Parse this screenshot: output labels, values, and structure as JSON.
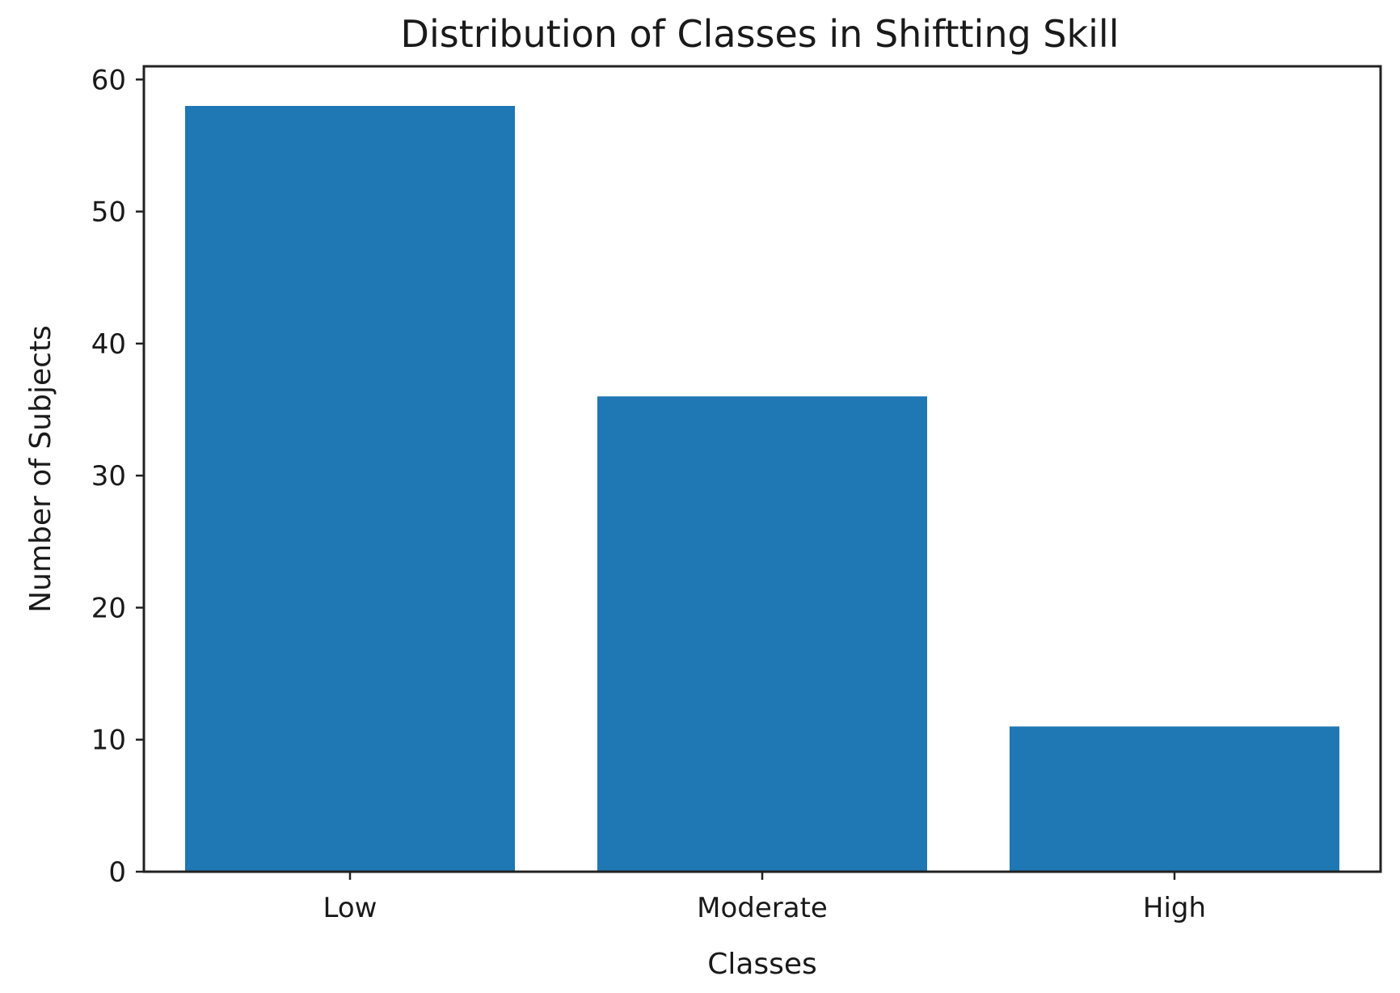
{
  "chart_data": {
    "type": "bar",
    "title": "Distribution of Classes in Shiftting Skill",
    "xlabel": "Classes",
    "ylabel": "Number of Subjects",
    "categories": [
      "Low",
      "Moderate",
      "High"
    ],
    "values": [
      58,
      36,
      11
    ],
    "ylim": [
      0,
      61
    ],
    "yticks": [
      0,
      10,
      20,
      30,
      40,
      50,
      60
    ],
    "grid": false,
    "bar_color": "#1f77b4"
  }
}
